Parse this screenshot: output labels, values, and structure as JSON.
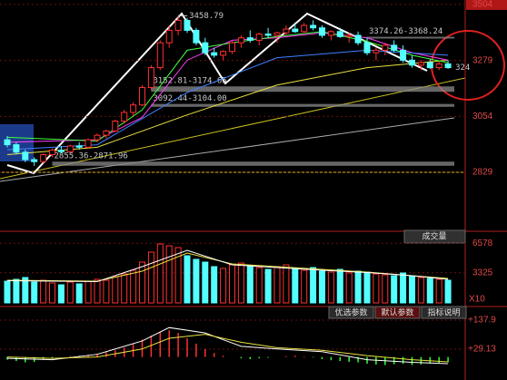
{
  "chart_data": {
    "type": "candlestick",
    "ylim": [
      2592,
      3522
    ],
    "yticks": [
      3504,
      3279,
      3054,
      2829
    ],
    "ohlc": [
      [
        2960,
        2975,
        2930,
        2940
      ],
      [
        2940,
        2950,
        2900,
        2910
      ],
      [
        2910,
        2920,
        2870,
        2880
      ],
      [
        2880,
        2890,
        2855,
        2872
      ],
      [
        2872,
        2905,
        2865,
        2900
      ],
      [
        2900,
        2925,
        2890,
        2918
      ],
      [
        2918,
        2935,
        2905,
        2912
      ],
      [
        2912,
        2940,
        2908,
        2935
      ],
      [
        2935,
        2950,
        2920,
        2930
      ],
      [
        2930,
        2965,
        2925,
        2960
      ],
      [
        2960,
        2985,
        2950,
        2978
      ],
      [
        2978,
        3000,
        2965,
        2995
      ],
      [
        2995,
        3040,
        2990,
        3035
      ],
      [
        3035,
        3080,
        3025,
        3070
      ],
      [
        3070,
        3110,
        3055,
        3100
      ],
      [
        3100,
        3180,
        3095,
        3170
      ],
      [
        3170,
        3260,
        3160,
        3250
      ],
      [
        3250,
        3360,
        3240,
        3350
      ],
      [
        3350,
        3420,
        3330,
        3400
      ],
      [
        3400,
        3458.79,
        3380,
        3440
      ],
      [
        3440,
        3450,
        3390,
        3400
      ],
      [
        3400,
        3410,
        3340,
        3350
      ],
      [
        3350,
        3370,
        3300,
        3310
      ],
      [
        3310,
        3330,
        3290,
        3300
      ],
      [
        3300,
        3320,
        3280,
        3315
      ],
      [
        3315,
        3360,
        3305,
        3350
      ],
      [
        3350,
        3380,
        3330,
        3370
      ],
      [
        3370,
        3400,
        3350,
        3360
      ],
      [
        3360,
        3390,
        3340,
        3385
      ],
      [
        3385,
        3410,
        3370,
        3380
      ],
      [
        3380,
        3395,
        3350,
        3390
      ],
      [
        3390,
        3420,
        3380,
        3405
      ],
      [
        3405,
        3425,
        3390,
        3395
      ],
      [
        3395,
        3430,
        3385,
        3420
      ],
      [
        3420,
        3440,
        3400,
        3410
      ],
      [
        3410,
        3420,
        3370,
        3380
      ],
      [
        3380,
        3400,
        3360,
        3395
      ],
      [
        3395,
        3410,
        3370,
        3375
      ],
      [
        3375,
        3390,
        3350,
        3380
      ],
      [
        3380,
        3395,
        3340,
        3350
      ],
      [
        3350,
        3370,
        3300,
        3310
      ],
      [
        3310,
        3330,
        3280,
        3320
      ],
      [
        3320,
        3350,
        3300,
        3340
      ],
      [
        3340,
        3360,
        3310,
        3320
      ],
      [
        3320,
        3340,
        3270,
        3280
      ],
      [
        3280,
        3300,
        3250,
        3260
      ],
      [
        3260,
        3280,
        3240,
        3270
      ],
      [
        3270,
        3285,
        3245,
        3250
      ],
      [
        3250,
        3275,
        3240,
        3265
      ],
      [
        3265,
        3280,
        3245,
        3250
      ]
    ],
    "up_color": "#ff3030",
    "down_color": "#54ffff",
    "ma_lines": [
      {
        "color": "#e8e040",
        "x": [
          0,
          10,
          20,
          30,
          40,
          49
        ],
        "values": [
          2900,
          2930,
          3060,
          3180,
          3250,
          3280
        ]
      },
      {
        "color": "#ff40ff",
        "x": [
          0,
          10,
          15,
          20,
          25,
          30,
          35,
          40,
          45,
          49
        ],
        "values": [
          2950,
          2960,
          3050,
          3280,
          3360,
          3370,
          3390,
          3370,
          3310,
          3280
        ]
      },
      {
        "color": "#40ff40",
        "x": [
          0,
          10,
          15,
          20,
          25,
          30,
          35,
          40,
          45,
          49
        ],
        "values": [
          2970,
          2955,
          3080,
          3320,
          3350,
          3375,
          3395,
          3355,
          3300,
          3270
        ]
      },
      {
        "color": "#4080ff",
        "x": [
          0,
          10,
          20,
          30,
          40,
          49
        ],
        "values": [
          2920,
          2940,
          3150,
          3290,
          3320,
          3300
        ]
      }
    ],
    "annotations": [
      {
        "text": "3458.79",
        "value": 3458.79,
        "x": 19
      }
    ],
    "zones": [
      {
        "label": "3374.26-3368.24",
        "low": 3368.24,
        "high": 3374.26,
        "from": 40
      },
      {
        "label": "3152.81-3174.65",
        "low": 3152.81,
        "high": 3174.65,
        "from": 16
      },
      {
        "label": "3092.44-3104.00",
        "low": 3092.44,
        "high": 3104.0,
        "from": 16
      },
      {
        "label": "2855.36-2871.96",
        "low": 2855.36,
        "high": 2871.96,
        "from": 5
      }
    ],
    "last_label": "324",
    "volume": {
      "title": "成交量",
      "unit_label": "X10",
      "ylim": [
        0,
        7900
      ],
      "yticks": [
        6578,
        3325
      ],
      "values": [
        2400,
        2600,
        2800,
        2300,
        2500,
        2200,
        2000,
        2300,
        2100,
        2400,
        2600,
        2500,
        2900,
        3200,
        3600,
        4500,
        5600,
        6500,
        6300,
        6100,
        5200,
        4800,
        4500,
        4000,
        3800,
        4200,
        4400,
        4100,
        3900,
        3700,
        4000,
        4200,
        3800,
        3600,
        3900,
        3500,
        3400,
        3700,
        3300,
        3500,
        3400,
        3200,
        3100,
        3000,
        3300,
        2900,
        2800,
        2700,
        2600,
        2500
      ],
      "lines": [
        {
          "color": "#e8e040",
          "x": [
            0,
            10,
            15,
            20,
            25,
            30,
            35,
            40,
            45,
            49
          ],
          "values": [
            2500,
            2400,
            3500,
            5500,
            4300,
            4000,
            3700,
            3400,
            3000,
            2700
          ]
        },
        {
          "color": "#ffffff",
          "x": [
            0,
            10,
            15,
            20,
            25,
            30,
            35,
            40,
            45,
            49
          ],
          "values": [
            2450,
            2350,
            4000,
            5800,
            4200,
            3900,
            3600,
            3350,
            3000,
            2600
          ]
        }
      ]
    },
    "macd": {
      "ylim": [
        -86,
        148
      ],
      "yticks": [
        {
          "value": 137.9,
          "label": "+137.9"
        },
        {
          "value": 29.13,
          "label": "+29.13"
        }
      ],
      "tabs": [
        "优选参数",
        "默认参数",
        "指标说明"
      ],
      "values": [
        -10,
        -15,
        -20,
        -18,
        -10,
        -5,
        0,
        3,
        5,
        8,
        12,
        18,
        25,
        35,
        50,
        65,
        80,
        95,
        100,
        90,
        70,
        50,
        30,
        15,
        5,
        0,
        -5,
        -8,
        -5,
        -3,
        0,
        3,
        5,
        2,
        -2,
        -8,
        -12,
        -15,
        -18,
        -20,
        -25,
        -28,
        -30,
        -27,
        -25,
        -30,
        -28,
        -25,
        -22,
        -20
      ],
      "lines": [
        {
          "color": "#ffffff",
          "x": [
            0,
            5,
            10,
            15,
            18,
            22,
            26,
            30,
            35,
            40,
            45,
            49
          ],
          "values": [
            -5,
            -10,
            10,
            60,
            110,
            90,
            40,
            30,
            20,
            -10,
            -20,
            -25
          ]
        },
        {
          "color": "#e8e040",
          "x": [
            0,
            5,
            10,
            15,
            18,
            22,
            26,
            30,
            35,
            40,
            45,
            49
          ],
          "values": [
            0,
            -5,
            0,
            30,
            70,
            85,
            55,
            35,
            25,
            5,
            -10,
            -18
          ]
        }
      ]
    }
  }
}
